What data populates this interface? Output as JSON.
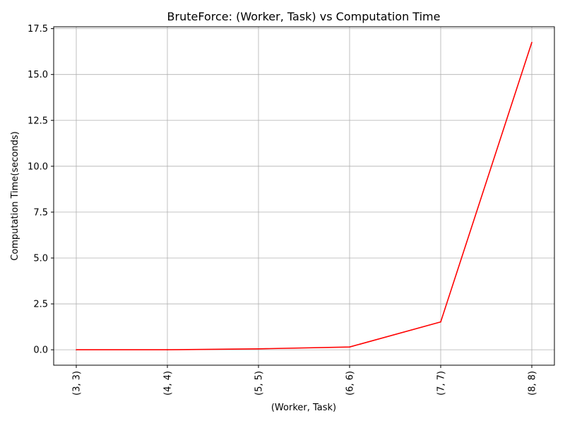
{
  "chart_data": {
    "type": "line",
    "title": "BruteForce: (Worker, Task) vs Computation Time",
    "xlabel": "(Worker, Task)",
    "ylabel": "Computation Time(seconds)",
    "categories": [
      "(3, 3)",
      "(4, 4)",
      "(5, 5)",
      "(6, 6)",
      "(7, 7)",
      "(8, 8)"
    ],
    "values": [
      0.0,
      0.002,
      0.05,
      0.15,
      1.52,
      16.75
    ],
    "ylim": [
      -0.84,
      17.6
    ],
    "yticks": [
      0.0,
      2.5,
      5.0,
      7.5,
      10.0,
      12.5,
      15.0,
      17.5
    ],
    "ytick_labels": [
      "0.0",
      "2.5",
      "5.0",
      "7.5",
      "10.0",
      "12.5",
      "15.0",
      "17.5"
    ],
    "grid": true,
    "line_color": "#ff0000",
    "grid_color": "#b0b0b0"
  }
}
